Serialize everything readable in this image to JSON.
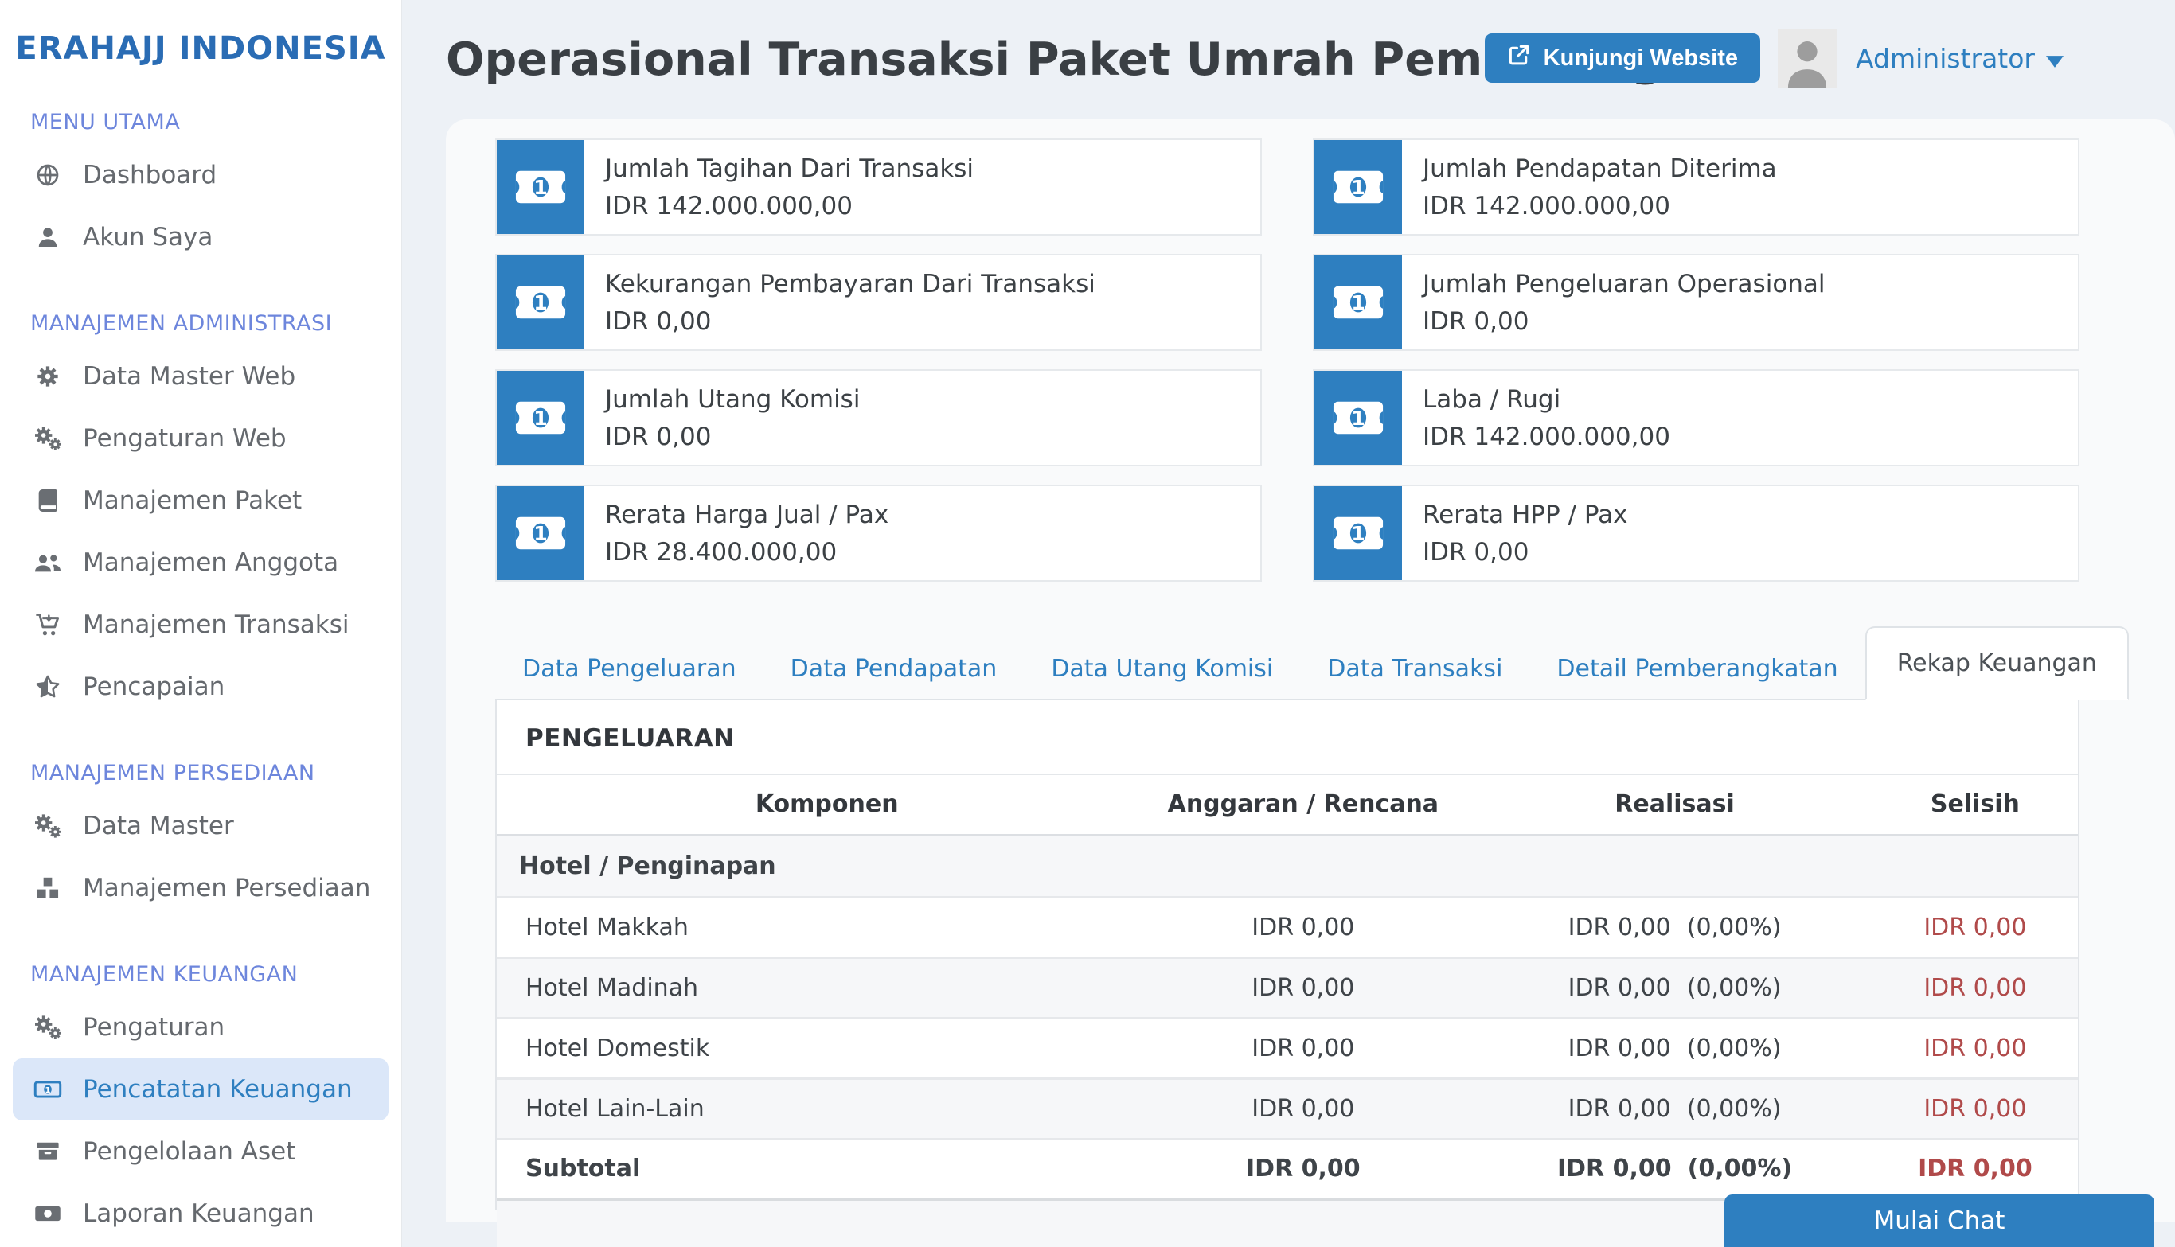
{
  "brand": "ERAHAJJ INDONESIA",
  "header": {
    "title": "Operasional Transaksi Paket Umrah Pemberang",
    "visit_button_label": "Kunjungi Website",
    "user_name": "Administrator"
  },
  "sidebar": {
    "sections": [
      {
        "label": "MENU UTAMA",
        "items": [
          {
            "icon": "globe",
            "label": "Dashboard",
            "active": false
          },
          {
            "icon": "user",
            "label": "Akun Saya",
            "active": false
          }
        ]
      },
      {
        "label": "MANAJEMEN ADMINISTRASI",
        "items": [
          {
            "icon": "cog",
            "label": "Data Master Web",
            "active": false
          },
          {
            "icon": "cogs",
            "label": "Pengaturan Web",
            "active": false
          },
          {
            "icon": "book",
            "label": "Manajemen Paket",
            "active": false
          },
          {
            "icon": "users",
            "label": "Manajemen Anggota",
            "active": false
          },
          {
            "icon": "cart-arrow-down",
            "label": "Manajemen Transaksi",
            "active": false
          },
          {
            "icon": "star-half",
            "label": "Pencapaian",
            "active": false
          }
        ]
      },
      {
        "label": "MANAJEMEN PERSEDIAAN",
        "items": [
          {
            "icon": "cogs",
            "label": "Data Master",
            "active": false
          },
          {
            "icon": "cubes",
            "label": "Manajemen Persediaan",
            "active": false
          }
        ]
      },
      {
        "label": "MANAJEMEN KEUANGAN",
        "items": [
          {
            "icon": "cogs",
            "label": "Pengaturan",
            "active": false
          },
          {
            "icon": "money-bill",
            "label": "Pencatatan Keuangan",
            "active": true
          },
          {
            "icon": "archive",
            "label": "Pengelolaan Aset",
            "active": false
          },
          {
            "icon": "money-check",
            "label": "Laporan Keuangan",
            "active": false
          }
        ]
      }
    ]
  },
  "stats": {
    "left": [
      {
        "label": "Jumlah Tagihan Dari Transaksi",
        "value": "IDR 142.000.000,00"
      },
      {
        "label": "Kekurangan Pembayaran Dari Transaksi",
        "value": "IDR 0,00"
      },
      {
        "label": "Jumlah Utang Komisi",
        "value": "IDR 0,00"
      },
      {
        "label": "Rerata Harga Jual / Pax",
        "value": "IDR 28.400.000,00"
      }
    ],
    "right": [
      {
        "label": "Jumlah Pendapatan Diterima",
        "value": "IDR 142.000.000,00"
      },
      {
        "label": "Jumlah Pengeluaran Operasional",
        "value": "IDR 0,00"
      },
      {
        "label": "Laba / Rugi",
        "value": "IDR 142.000.000,00"
      },
      {
        "label": "Rerata HPP / Pax",
        "value": "IDR 0,00"
      }
    ]
  },
  "tabs": [
    {
      "label": "Data Pengeluaran",
      "active": false
    },
    {
      "label": "Data Pendapatan",
      "active": false
    },
    {
      "label": "Data Utang Komisi",
      "active": false
    },
    {
      "label": "Data Transaksi",
      "active": false
    },
    {
      "label": "Detail Pemberangkatan",
      "active": false
    },
    {
      "label": "Rekap Keuangan",
      "active": true
    }
  ],
  "table": {
    "section_title": "PENGELUARAN",
    "columns": [
      "Komponen",
      "Anggaran / Rencana",
      "Realisasi",
      "Selisih"
    ],
    "group_label": "Hotel / Penginapan",
    "rows": [
      {
        "komponen": "Hotel Makkah",
        "anggaran": "IDR 0,00",
        "realisasi": "IDR 0,00",
        "realisasi_pct": "(0,00%)",
        "selisih": "IDR 0,00"
      },
      {
        "komponen": "Hotel Madinah",
        "anggaran": "IDR 0,00",
        "realisasi": "IDR 0,00",
        "realisasi_pct": "(0,00%)",
        "selisih": "IDR 0,00"
      },
      {
        "komponen": "Hotel Domestik",
        "anggaran": "IDR 0,00",
        "realisasi": "IDR 0,00",
        "realisasi_pct": "(0,00%)",
        "selisih": "IDR 0,00"
      },
      {
        "komponen": "Hotel Lain-Lain",
        "anggaran": "IDR 0,00",
        "realisasi": "IDR 0,00",
        "realisasi_pct": "(0,00%)",
        "selisih": "IDR 0,00"
      }
    ],
    "subtotal": {
      "komponen": "Subtotal",
      "anggaran": "IDR 0,00",
      "realisasi": "IDR 0,00",
      "realisasi_pct": "(0,00%)",
      "selisih": "IDR 0,00"
    }
  },
  "chat_button_label": "Mulai Chat",
  "colors": {
    "accent_blue": "#2e7fc0",
    "brand_blue": "#2a6cb4",
    "section_label_blue": "#6d86dc",
    "active_item_bg": "#dbe7f9",
    "danger_red": "#b04a4a",
    "page_bg": "#edf1f6",
    "content_bg": "#f9fafb",
    "stripe_bg": "#f6f7f9"
  }
}
